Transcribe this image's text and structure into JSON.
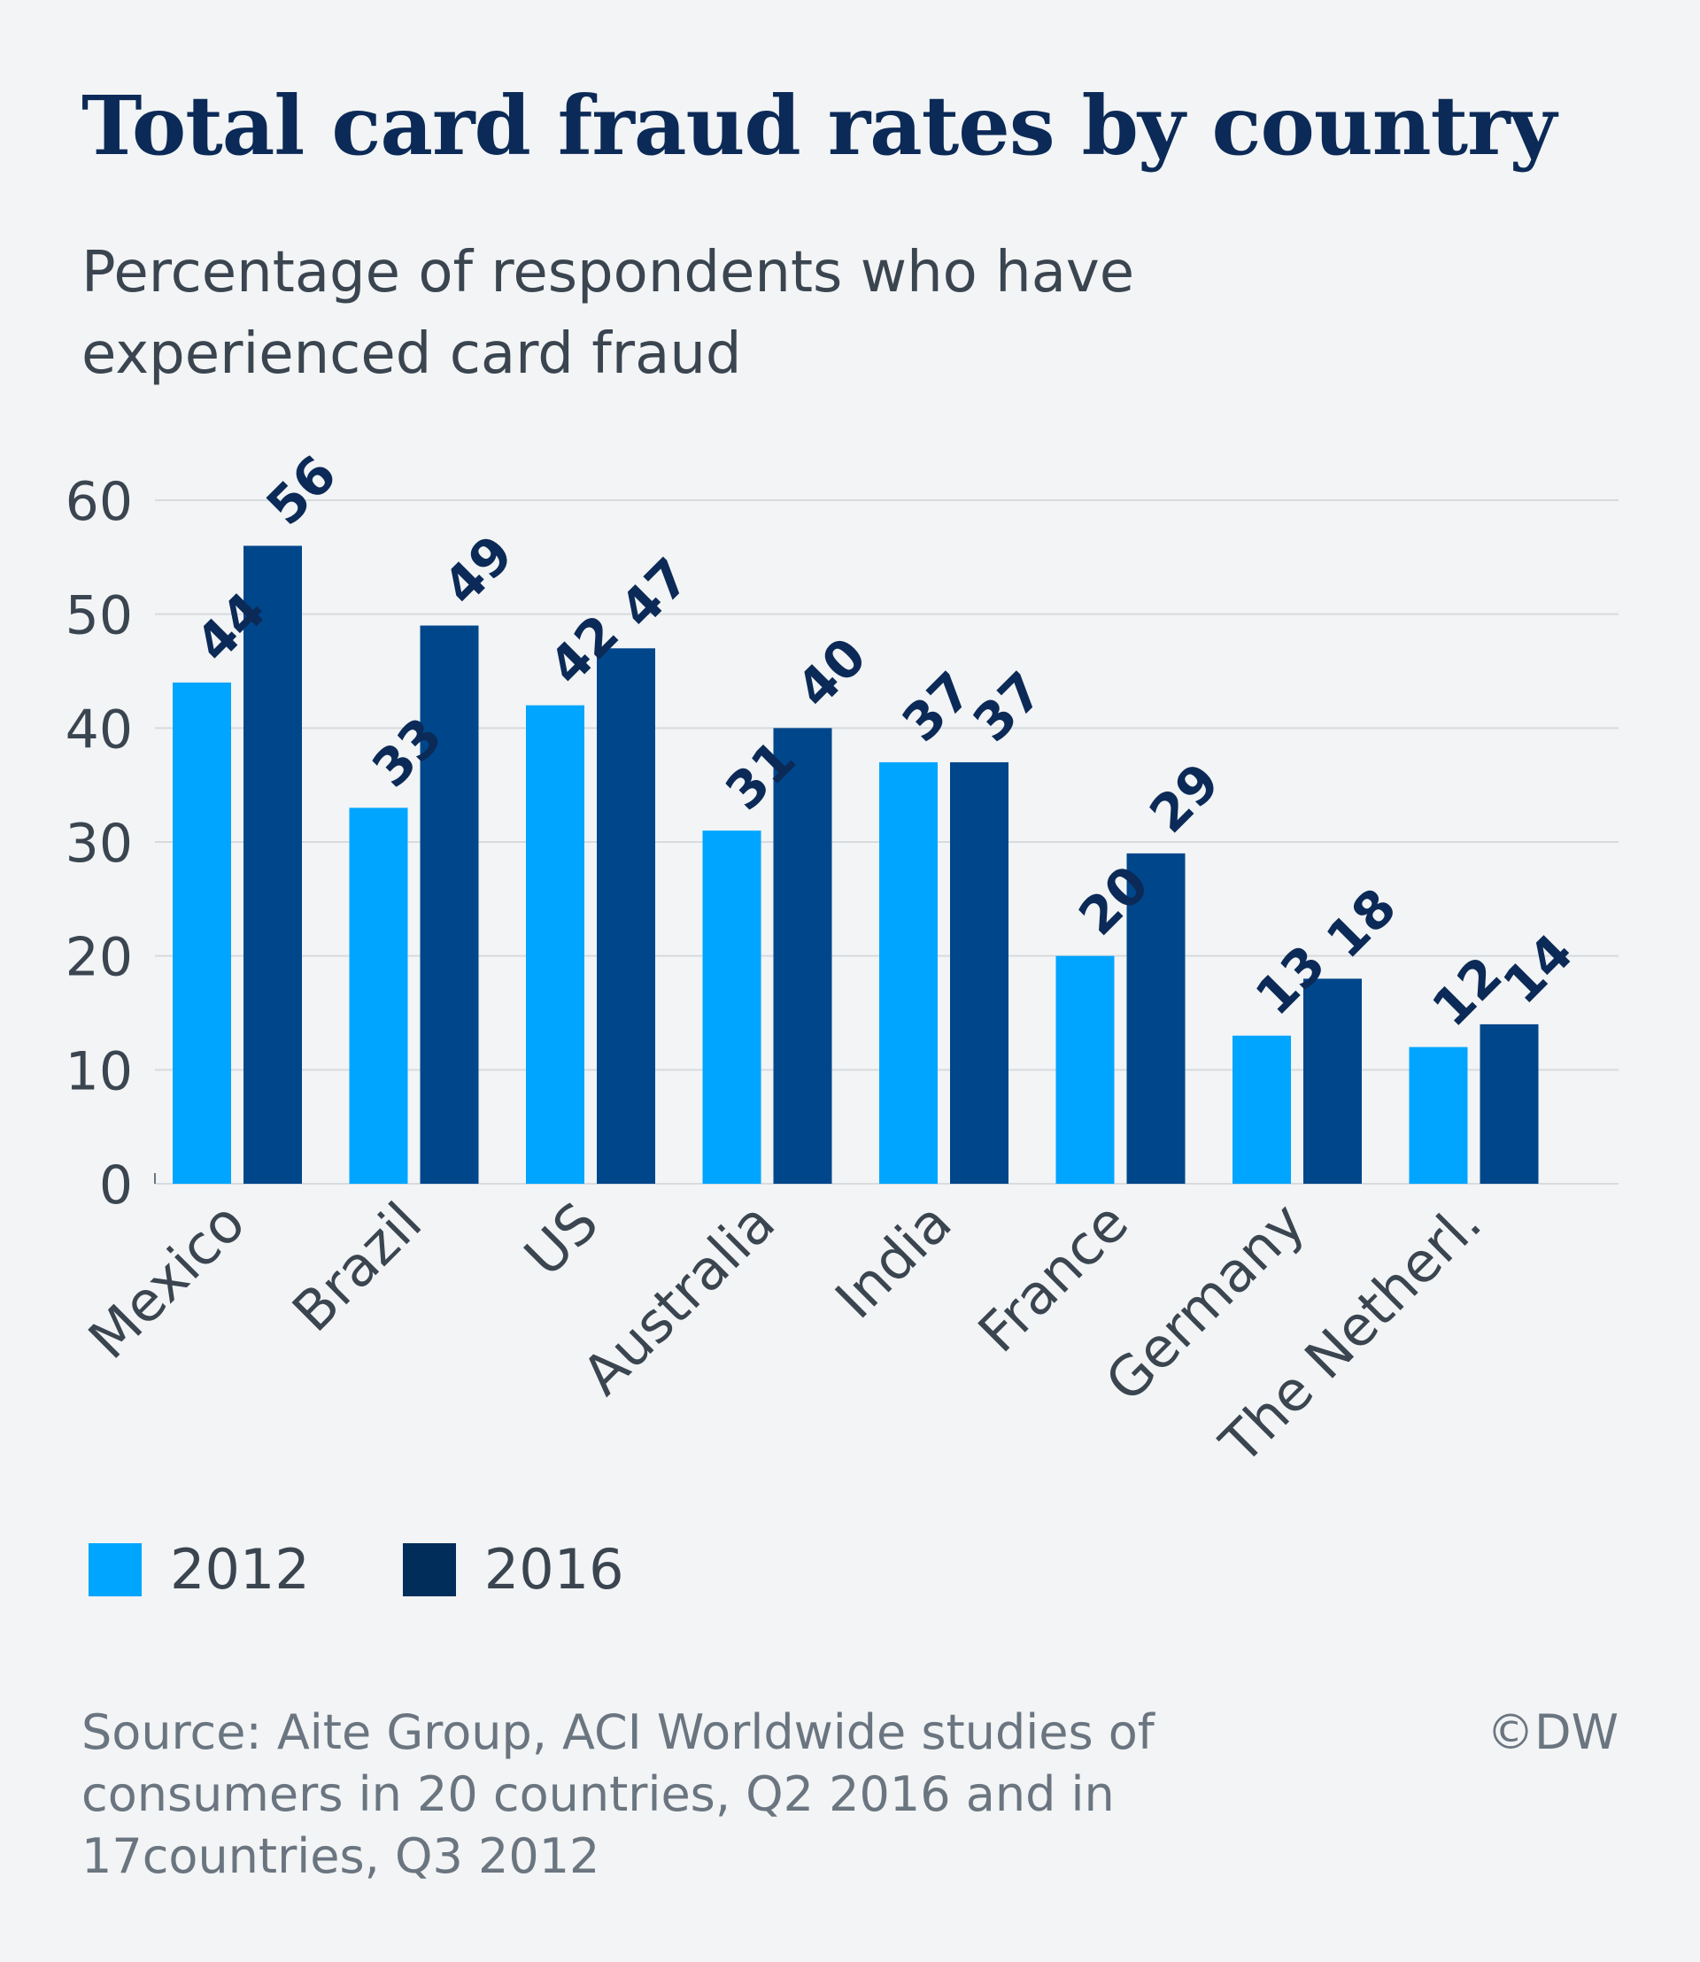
{
  "chart_data": {
    "type": "bar",
    "title": "Total card fraud rates by country",
    "subtitle": "Percentage of respondents who have experienced card fraud",
    "categories": [
      "Mexico",
      "Brazil",
      "US",
      "Australia",
      "India",
      "France",
      "Germany",
      "The Netherl."
    ],
    "series": [
      {
        "name": "2012",
        "color": "#00a5ff",
        "values": [
          44,
          33,
          42,
          31,
          37,
          20,
          13,
          12
        ]
      },
      {
        "name": "2016",
        "color": "#002d5a",
        "bar_color": "#00468b",
        "values": [
          56,
          49,
          47,
          40,
          37,
          29,
          18,
          14
        ]
      }
    ],
    "ylim": [
      0,
      60
    ],
    "yticks": [
      0,
      10,
      20,
      30,
      40,
      50,
      60
    ],
    "grid": true,
    "data_labels": true,
    "legend_position": "bottom-left"
  },
  "source": "Source: Aite Group, ACI  Worldwide studies of consumers in 20 countries, Q2 2016 and in 17countries, Q3  2012",
  "copyright": "©DW"
}
